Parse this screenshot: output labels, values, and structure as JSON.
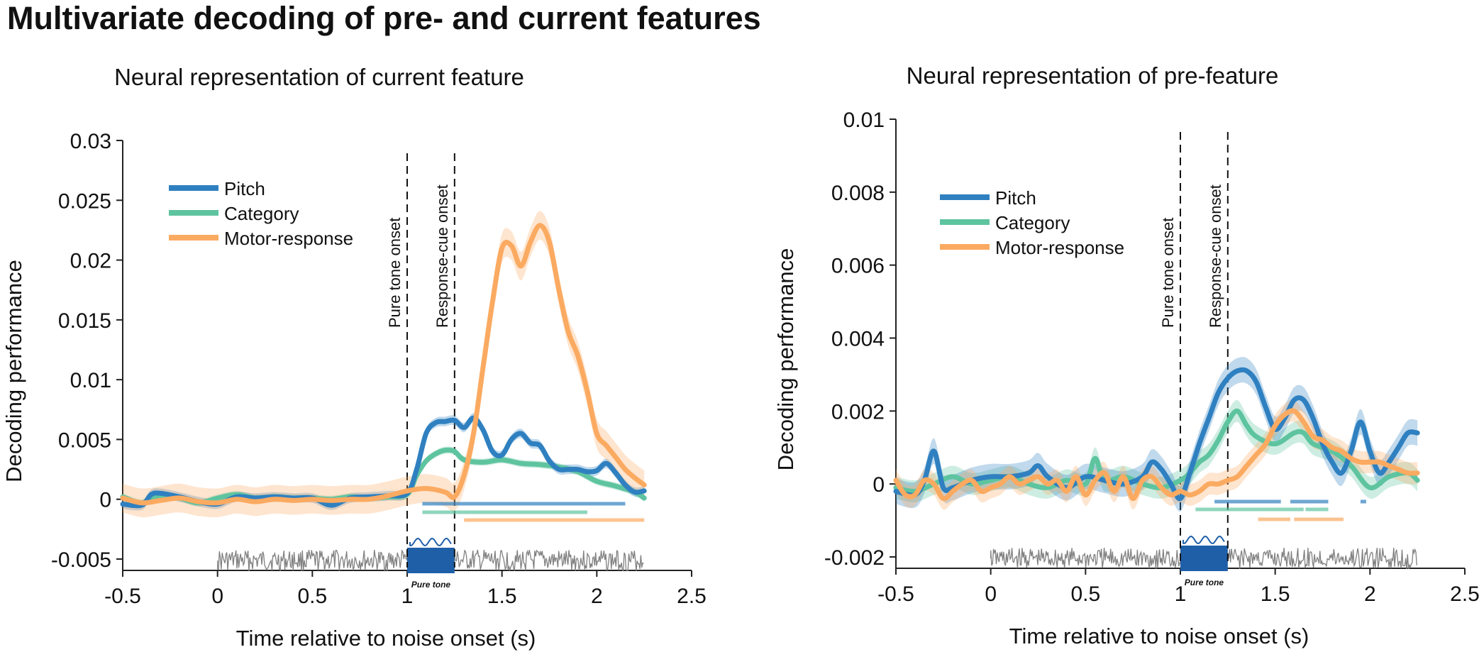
{
  "title": "Multivariate decoding of pre- and current features",
  "colors": {
    "pitch": "#2f80c0",
    "category": "#5ec4a0",
    "motor": "#fbaa61",
    "noise": "#808080",
    "tone_box": "#1f5fa8",
    "tone_label": "#3a8fd0"
  },
  "chart_data": [
    {
      "type": "line",
      "title": "Neural representation of current feature",
      "xlabel": "Time relative to noise onset (s)",
      "ylabel": "Decoding performance",
      "xlim": [
        -0.5,
        2.5
      ],
      "ylim": [
        -0.005,
        0.03
      ],
      "xticks": [
        -0.5,
        0,
        0.5,
        1,
        1.5,
        2,
        2.5
      ],
      "xtick_labels": [
        "-0.5",
        "0",
        "0.5",
        "1",
        "1.5",
        "2",
        "2.5"
      ],
      "yticks": [
        -0.005,
        0,
        0.005,
        0.01,
        0.015,
        0.02,
        0.025,
        0.03
      ],
      "ytick_labels": [
        "-0.005",
        "0",
        "0.005",
        "0.01",
        "0.015",
        "0.02",
        "0.025",
        "0.03"
      ],
      "legend_position": "top-left",
      "vlines": [
        {
          "x": 1.0,
          "label": "Pure tone onset"
        },
        {
          "x": 1.25,
          "label": "Response-cue onset"
        }
      ],
      "stimulus_label": "Pure tone",
      "series": [
        {
          "name": "Pitch",
          "key": "pitch",
          "x": [
            -0.5,
            -0.4,
            -0.35,
            -0.3,
            -0.2,
            -0.1,
            0,
            0.1,
            0.2,
            0.3,
            0.4,
            0.5,
            0.6,
            0.7,
            0.8,
            0.9,
            1.0,
            1.05,
            1.1,
            1.15,
            1.2,
            1.25,
            1.3,
            1.35,
            1.4,
            1.45,
            1.5,
            1.55,
            1.6,
            1.65,
            1.7,
            1.75,
            1.8,
            1.85,
            1.9,
            1.95,
            2.0,
            2.05,
            2.1,
            2.15,
            2.2,
            2.25
          ],
          "y": [
            -0.0004,
            -0.0005,
            0.0004,
            0.0005,
            0.0002,
            -0.0002,
            -0.0004,
            0.0002,
            0.0001,
            0.0002,
            0.0001,
            0.0001,
            -0.0005,
            0.0001,
            0.0002,
            0.0003,
            0.0005,
            0.0025,
            0.0055,
            0.0064,
            0.0065,
            0.0066,
            0.006,
            0.0068,
            0.0058,
            0.004,
            0.0037,
            0.005,
            0.0055,
            0.0047,
            0.0045,
            0.0032,
            0.0025,
            0.0025,
            0.0025,
            0.0023,
            0.0024,
            0.003,
            0.0022,
            0.0012,
            0.0006,
            0.0007
          ],
          "ci": 0.0004
        },
        {
          "name": "Category",
          "key": "category",
          "x": [
            -0.5,
            -0.4,
            -0.3,
            -0.2,
            -0.1,
            0,
            0.1,
            0.2,
            0.3,
            0.4,
            0.5,
            0.6,
            0.7,
            0.8,
            0.9,
            1.0,
            1.05,
            1.1,
            1.15,
            1.2,
            1.25,
            1.3,
            1.4,
            1.5,
            1.6,
            1.7,
            1.8,
            1.9,
            2.0,
            2.1,
            2.2,
            2.25
          ],
          "y": [
            0.0002,
            -0.0003,
            0.0003,
            0.0001,
            -0.0003,
            0.0001,
            0.0004,
            0.0001,
            0.0002,
            0.0001,
            0.0001,
            0.0,
            0.0002,
            0.0001,
            0.0002,
            0.0004,
            0.002,
            0.0032,
            0.0038,
            0.0041,
            0.004,
            0.0033,
            0.0031,
            0.0033,
            0.003,
            0.0029,
            0.0027,
            0.0023,
            0.0015,
            0.0011,
            0.0006,
            0.0001
          ],
          "ci": 0.0003
        },
        {
          "name": "Motor-response",
          "key": "motor",
          "x": [
            -0.5,
            -0.4,
            -0.3,
            -0.2,
            -0.1,
            0,
            0.1,
            0.2,
            0.3,
            0.4,
            0.5,
            0.6,
            0.7,
            0.8,
            0.9,
            1.0,
            1.1,
            1.2,
            1.25,
            1.3,
            1.35,
            1.4,
            1.45,
            1.5,
            1.55,
            1.6,
            1.65,
            1.7,
            1.75,
            1.8,
            1.85,
            1.9,
            1.95,
            2.0,
            2.05,
            2.1,
            2.15,
            2.2,
            2.25
          ],
          "y": [
            0.0001,
            -0.0003,
            -0.0001,
            0.0001,
            -0.0002,
            -0.0003,
            0.0,
            -0.0002,
            0.0,
            -0.0001,
            0.0,
            -0.0001,
            0.0,
            0.0,
            0.0003,
            0.0007,
            0.0009,
            0.0006,
            0.0002,
            0.002,
            0.0055,
            0.011,
            0.0165,
            0.021,
            0.0212,
            0.0195,
            0.0215,
            0.0229,
            0.0215,
            0.0175,
            0.014,
            0.012,
            0.009,
            0.0055,
            0.0045,
            0.0035,
            0.0025,
            0.0018,
            0.0012
          ],
          "ci": 0.0012
        }
      ],
      "significance": [
        {
          "key": "pitch",
          "segments": [
            [
              1.08,
              2.15
            ]
          ]
        },
        {
          "key": "category",
          "segments": [
            [
              1.08,
              1.95
            ]
          ]
        },
        {
          "key": "motor",
          "segments": [
            [
              1.3,
              2.25
            ]
          ]
        }
      ]
    },
    {
      "type": "line",
      "title": "Neural representation of pre-feature",
      "xlabel": "Time relative to noise onset (s)",
      "ylabel": "Decoding performance",
      "xlim": [
        -0.5,
        2.5
      ],
      "ylim": [
        -0.002,
        0.01
      ],
      "xticks": [
        -0.5,
        0,
        0.5,
        1,
        1.5,
        2,
        2.5
      ],
      "xtick_labels": [
        "-0.5",
        "0",
        "0.5",
        "1",
        "1.5",
        "2",
        "2.5"
      ],
      "yticks": [
        -0.002,
        0,
        0.002,
        0.004,
        0.006,
        0.008,
        0.01
      ],
      "ytick_labels": [
        "-0.002",
        "0",
        "0.002",
        "0.004",
        "0.006",
        "0.008",
        "0.01"
      ],
      "legend_position": "top-left",
      "vlines": [
        {
          "x": 1.0,
          "label": "Pure tone onset"
        },
        {
          "x": 1.25,
          "label": "Response-cue onset"
        }
      ],
      "stimulus_label": "Pure tone",
      "series": [
        {
          "name": "Pitch",
          "key": "pitch",
          "x": [
            -0.5,
            -0.4,
            -0.35,
            -0.3,
            -0.25,
            -0.2,
            -0.1,
            0,
            0.1,
            0.2,
            0.25,
            0.3,
            0.4,
            0.5,
            0.6,
            0.7,
            0.8,
            0.85,
            0.9,
            0.95,
            1.0,
            1.05,
            1.1,
            1.15,
            1.2,
            1.25,
            1.3,
            1.35,
            1.4,
            1.45,
            1.5,
            1.55,
            1.6,
            1.65,
            1.7,
            1.75,
            1.8,
            1.85,
            1.9,
            1.95,
            2.0,
            2.05,
            2.1,
            2.15,
            2.2,
            2.25
          ],
          "y": [
            -0.0002,
            -0.0003,
            0.0001,
            0.0009,
            -0.0001,
            -0.0001,
            0.0001,
            0.0002,
            0.0002,
            0.0003,
            0.0005,
            0.0002,
            -0.0001,
            0.0002,
            0.0001,
            0.0,
            0.0002,
            0.0006,
            0.0004,
            0.0,
            -0.0004,
            0.0003,
            0.0011,
            0.0018,
            0.0025,
            0.0029,
            0.0031,
            0.0031,
            0.0028,
            0.0021,
            0.0015,
            0.0018,
            0.0023,
            0.0023,
            0.0018,
            0.0011,
            0.0006,
            0.0003,
            0.0009,
            0.0017,
            0.0009,
            0.0003,
            0.0006,
            0.001,
            0.0014,
            0.0014
          ],
          "ci": 0.00035
        },
        {
          "name": "Category",
          "key": "category",
          "x": [
            -0.5,
            -0.4,
            -0.3,
            -0.2,
            -0.1,
            0,
            0.1,
            0.2,
            0.3,
            0.4,
            0.5,
            0.55,
            0.6,
            0.7,
            0.8,
            0.9,
            1.0,
            1.05,
            1.1,
            1.15,
            1.2,
            1.25,
            1.3,
            1.35,
            1.4,
            1.5,
            1.6,
            1.65,
            1.7,
            1.8,
            1.9,
            2.0,
            2.1,
            2.2,
            2.25
          ],
          "y": [
            -0.0001,
            -0.0002,
            0.0,
            0.0002,
            0.0,
            0.0001,
            0.0002,
            0.0,
            -0.0001,
            0.0001,
            0.0,
            0.0007,
            0.0001,
            0.0002,
            0.0,
            -0.0001,
            0.0001,
            0.0003,
            0.0006,
            0.0008,
            0.0012,
            0.0017,
            0.002,
            0.0016,
            0.0013,
            0.0011,
            0.0014,
            0.0014,
            0.0011,
            0.0009,
            0.0005,
            -0.0001,
            0.0002,
            0.0003,
            0.0001
          ],
          "ci": 0.0003
        },
        {
          "name": "Motor-response",
          "key": "motor",
          "x": [
            -0.5,
            -0.45,
            -0.4,
            -0.35,
            -0.3,
            -0.25,
            -0.2,
            -0.15,
            -0.1,
            -0.05,
            0,
            0.05,
            0.1,
            0.15,
            0.2,
            0.25,
            0.3,
            0.35,
            0.4,
            0.45,
            0.5,
            0.55,
            0.6,
            0.65,
            0.7,
            0.75,
            0.8,
            0.85,
            0.9,
            0.95,
            1.0,
            1.05,
            1.1,
            1.15,
            1.2,
            1.25,
            1.3,
            1.35,
            1.4,
            1.45,
            1.5,
            1.55,
            1.6,
            1.65,
            1.7,
            1.75,
            1.8,
            1.85,
            1.9,
            1.95,
            2.0,
            2.05,
            2.1,
            2.15,
            2.2,
            2.25
          ],
          "y": [
            0.0001,
            -0.0003,
            -0.0003,
            0.0001,
            0.0,
            -0.0004,
            -0.0002,
            0.0,
            0.0001,
            -0.0002,
            -0.0001,
            0.0,
            0.0002,
            0.0,
            0.0001,
            0.0002,
            0.0,
            0.0001,
            -0.0002,
            0.0002,
            -0.0003,
            0.0001,
            0.0003,
            -0.0002,
            0.0002,
            -0.0004,
            0.0001,
            0.0002,
            -0.0001,
            -0.0003,
            -0.0002,
            -0.0003,
            -0.0002,
            0.0,
            0.0,
            0.0001,
            0.0002,
            0.0005,
            0.0008,
            0.0011,
            0.0016,
            0.0019,
            0.002,
            0.0017,
            0.0013,
            0.0012,
            0.001,
            0.0009,
            0.0007,
            0.0006,
            0.0006,
            0.0006,
            0.0005,
            0.0004,
            0.0003,
            0.0003
          ],
          "ci": 0.0003
        }
      ],
      "significance": [
        {
          "key": "pitch",
          "segments": [
            [
              1.18,
              1.53
            ],
            [
              1.58,
              1.78
            ],
            [
              1.95,
              1.98
            ]
          ]
        },
        {
          "key": "category",
          "segments": [
            [
              1.08,
              1.65
            ],
            [
              1.66,
              1.78
            ]
          ]
        },
        {
          "key": "motor",
          "segments": [
            [
              1.41,
              1.58
            ],
            [
              1.6,
              1.86
            ]
          ]
        }
      ]
    }
  ]
}
